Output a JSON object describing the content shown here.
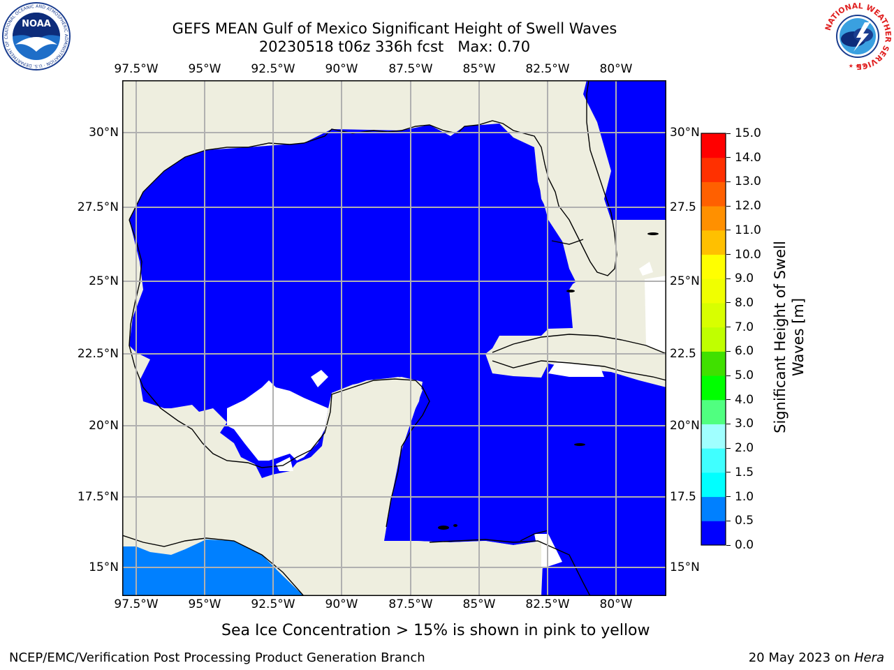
{
  "title": {
    "line1": "GEFS MEAN Gulf of Mexico Significant Height of Swell Waves",
    "line2": "20230518 t06z 336h fcst   Max: 0.70"
  },
  "logos": {
    "noaa_text": "NOAA",
    "noaa_ring_text": "NATIONAL OCEANIC AND ATMOSPHERIC ADMINISTRATION · U.S. DEPARTMENT OF COMMERCE",
    "nws_ring_text": "NATIONAL WEATHER SERVICE"
  },
  "map": {
    "lon_labels": [
      "97.5°W",
      "95°W",
      "92.5°W",
      "90°W",
      "87.5°W",
      "85°W",
      "82.5°W",
      "80°W"
    ],
    "lat_labels": [
      "30°N",
      "27.5°N",
      "25°N",
      "22.5°N",
      "20°N",
      "17.5°N",
      "15°N"
    ],
    "lat_labels_right": [
      "30°N",
      "27.5",
      "25°N",
      "22.5",
      "20°N",
      "17.5",
      "15°N"
    ],
    "lon_values": [
      -97.5,
      -95,
      -92.5,
      -90,
      -87.5,
      -85,
      -82.5,
      -80
    ],
    "lat_values": [
      30,
      27.5,
      25,
      22.5,
      20,
      17.5,
      15
    ],
    "lon_range": [
      -98,
      -78.2
    ],
    "lat_range": [
      14.0,
      31.8
    ],
    "grid": true,
    "colors": {
      "land": "#eeeedf",
      "sea_0_0_5": "#0000ff",
      "sea_0_5_1_0": "#0080ff",
      "missing": "#ffffff",
      "grid": "#b0b0b0",
      "coast": "#000000"
    }
  },
  "colorbar": {
    "label_line1": "Significant Height of Swell",
    "label_line2": "Waves [m]",
    "ticks": [
      "0.0",
      "0.5",
      "1.0",
      "1.5",
      "2.0",
      "3.0",
      "4.0",
      "5.0",
      "6.0",
      "7.0",
      "8.0",
      "9.0",
      "10.0",
      "11.0",
      "12.0",
      "13.0",
      "14.0",
      "15.0"
    ],
    "bins": [
      {
        "from": 0.0,
        "to": 0.5,
        "color": "#0000ff"
      },
      {
        "from": 0.5,
        "to": 1.0,
        "color": "#0080ff"
      },
      {
        "from": 1.0,
        "to": 1.5,
        "color": "#00ffff"
      },
      {
        "from": 1.5,
        "to": 2.0,
        "color": "#40ffff"
      },
      {
        "from": 2.0,
        "to": 3.0,
        "color": "#a0ffff"
      },
      {
        "from": 3.0,
        "to": 4.0,
        "color": "#50ff80"
      },
      {
        "from": 4.0,
        "to": 5.0,
        "color": "#00ff00"
      },
      {
        "from": 5.0,
        "to": 6.0,
        "color": "#40e000"
      },
      {
        "from": 6.0,
        "to": 7.0,
        "color": "#c0ff00"
      },
      {
        "from": 7.0,
        "to": 8.0,
        "color": "#d8ff00"
      },
      {
        "from": 8.0,
        "to": 9.0,
        "color": "#f0ff00"
      },
      {
        "from": 9.0,
        "to": 10.0,
        "color": "#ffff00"
      },
      {
        "from": 10.0,
        "to": 11.0,
        "color": "#ffc000"
      },
      {
        "from": 11.0,
        "to": 12.0,
        "color": "#ff9000"
      },
      {
        "from": 12.0,
        "to": 13.0,
        "color": "#ff6000"
      },
      {
        "from": 13.0,
        "to": 14.0,
        "color": "#ff3000"
      },
      {
        "from": 14.0,
        "to": 15.0,
        "color": "#ff0000"
      }
    ]
  },
  "note": "Sea Ice Concentration > 15% is shown in pink to yellow",
  "footer": {
    "left": "NCEP/EMC/Verification Post Processing Product Generation Branch",
    "right_prefix": "20 May 2023 on ",
    "right_machine": "Hera"
  }
}
